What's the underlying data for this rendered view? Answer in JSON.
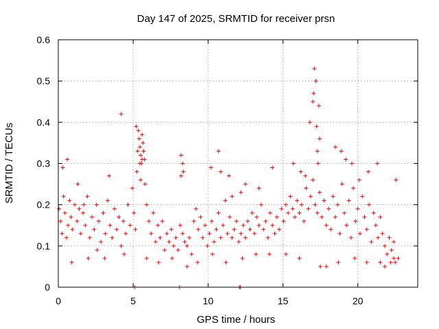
{
  "chart_data": {
    "type": "scatter",
    "title": "Day 147 of 2025, SRMTID for receiver prsn",
    "xlabel": "GPS time / hours",
    "ylabel": "SRMTID / TECUs",
    "xlim": [
      0,
      24
    ],
    "ylim": [
      0,
      0.6
    ],
    "xticks": [
      0,
      5,
      10,
      15,
      20
    ],
    "xtick_labels": [
      "0",
      "5",
      "10",
      "15",
      "20"
    ],
    "yticks": [
      0,
      0.1,
      0.2,
      0.3,
      0.4,
      0.5,
      0.6
    ],
    "ytick_labels": [
      "0",
      "0.1",
      "0.2",
      "0.3",
      "0.4",
      "0.5",
      "0.6"
    ],
    "grid": true,
    "marker": "+",
    "color": "#ff0000",
    "series": [
      {
        "name": "SRMTID",
        "x": [
          0.05,
          0.15,
          0.25,
          0.35,
          0.45,
          0.55,
          0.65,
          0.75,
          0.85,
          0.95,
          1.1,
          1.25,
          1.4,
          1.5,
          1.65,
          1.8,
          1.95,
          2.1,
          2.25,
          2.4,
          2.55,
          2.7,
          2.85,
          3.0,
          3.15,
          3.3,
          3.45,
          3.6,
          3.75,
          3.9,
          4.05,
          4.2,
          4.35,
          4.5,
          4.65,
          4.8,
          4.95,
          5.05,
          5.15,
          5.25,
          5.3,
          5.35,
          5.45,
          5.5,
          5.6,
          5.7,
          5.8,
          5.9,
          6.05,
          6.2,
          6.35,
          6.5,
          6.65,
          6.8,
          6.95,
          7.1,
          7.25,
          7.4,
          7.55,
          7.7,
          7.85,
          8.0,
          8.15,
          8.2,
          8.3,
          8.45,
          8.6,
          8.75,
          8.9,
          9.05,
          9.2,
          9.35,
          9.5,
          9.65,
          9.8,
          9.95,
          10.1,
          10.25,
          10.4,
          10.55,
          10.7,
          10.85,
          11.0,
          11.15,
          11.3,
          11.45,
          11.6,
          11.75,
          11.9,
          12.05,
          12.2,
          12.35,
          12.5,
          12.65,
          12.8,
          12.95,
          13.1,
          13.25,
          13.4,
          13.55,
          13.7,
          13.85,
          14.0,
          14.15,
          14.3,
          14.45,
          14.6,
          14.75,
          14.9,
          15.05,
          15.2,
          15.35,
          15.5,
          15.65,
          15.8,
          15.95,
          16.1,
          16.25,
          16.4,
          16.55,
          16.7,
          16.85,
          17.0,
          17.15,
          17.3,
          17.45,
          17.6,
          17.75,
          17.9,
          18.05,
          18.2,
          18.35,
          18.5,
          18.65,
          18.8,
          18.95,
          19.1,
          19.25,
          19.4,
          19.55,
          19.7,
          19.85,
          20.0,
          20.15,
          20.3,
          20.45,
          20.6,
          20.75,
          20.9,
          21.05,
          21.2,
          21.35,
          21.5,
          21.65,
          21.8,
          21.95,
          22.1,
          22.25,
          22.4,
          22.55,
          22.7,
          0.3,
          0.6,
          1.3,
          1.7,
          2.6,
          3.4,
          4.2,
          5.2,
          5.4,
          5.45,
          5.5,
          5.55,
          5.6,
          5.65,
          5.7,
          5.75,
          8.2,
          8.3,
          8.35,
          10.2,
          10.7,
          10.85,
          11.4,
          11.6,
          12.2,
          12.5,
          13.4,
          14.3,
          15.7,
          16.2,
          16.5,
          16.8,
          17.0,
          17.05,
          17.1,
          17.2,
          17.25,
          17.3,
          17.35,
          17.4,
          17.45,
          17.5,
          18.5,
          18.9,
          19.2,
          19.6,
          20.1,
          20.7,
          21.3,
          21.8,
          22.2,
          22.5,
          0.9,
          2.0,
          3.1,
          4.4,
          5.9,
          6.7,
          7.6,
          8.6,
          9.3,
          10.3,
          11.2,
          12.3,
          13.2,
          14.1,
          15.2,
          16.1,
          17.9,
          18.7,
          19.8,
          20.6,
          21.5,
          22.4,
          5.1,
          8.1,
          12.1,
          12.15
        ],
        "y": [
          0.19,
          0.16,
          0.13,
          0.22,
          0.18,
          0.12,
          0.15,
          0.21,
          0.17,
          0.14,
          0.2,
          0.16,
          0.19,
          0.13,
          0.18,
          0.15,
          0.22,
          0.12,
          0.17,
          0.14,
          0.2,
          0.16,
          0.11,
          0.18,
          0.13,
          0.21,
          0.15,
          0.12,
          0.19,
          0.14,
          0.17,
          0.1,
          0.16,
          0.13,
          0.2,
          0.15,
          0.24,
          0.18,
          0.14,
          0.28,
          0.33,
          0.38,
          0.3,
          0.26,
          0.31,
          0.33,
          0.25,
          0.2,
          0.16,
          0.13,
          0.18,
          0.11,
          0.15,
          0.12,
          0.16,
          0.09,
          0.13,
          0.11,
          0.14,
          0.1,
          0.12,
          0.09,
          0.15,
          0.27,
          0.13,
          0.11,
          0.1,
          0.12,
          0.08,
          0.16,
          0.19,
          0.14,
          0.17,
          0.12,
          0.15,
          0.1,
          0.13,
          0.16,
          0.11,
          0.14,
          0.18,
          0.12,
          0.15,
          0.21,
          0.13,
          0.17,
          0.12,
          0.14,
          0.16,
          0.11,
          0.13,
          0.15,
          0.12,
          0.16,
          0.14,
          0.18,
          0.13,
          0.17,
          0.15,
          0.2,
          0.14,
          0.16,
          0.12,
          0.18,
          0.15,
          0.13,
          0.17,
          0.14,
          0.19,
          0.16,
          0.2,
          0.18,
          0.22,
          0.19,
          0.17,
          0.21,
          0.18,
          0.2,
          0.16,
          0.24,
          0.19,
          0.22,
          0.26,
          0.2,
          0.18,
          0.23,
          0.17,
          0.21,
          0.15,
          0.19,
          0.14,
          0.22,
          0.17,
          0.2,
          0.13,
          0.25,
          0.18,
          0.15,
          0.21,
          0.12,
          0.24,
          0.16,
          0.19,
          0.13,
          0.22,
          0.17,
          0.14,
          0.2,
          0.11,
          0.18,
          0.15,
          0.12,
          0.17,
          0.13,
          0.1,
          0.08,
          0.12,
          0.09,
          0.11,
          0.26,
          0.07,
          0.29,
          0.31,
          0.25,
          0.2,
          0.09,
          0.27,
          0.42,
          0.39,
          0.36,
          0.34,
          0.32,
          0.3,
          0.37,
          0.35,
          0.33,
          0.31,
          0.32,
          0.3,
          0.28,
          0.29,
          0.33,
          0.28,
          0.27,
          0.22,
          0.23,
          0.25,
          0.24,
          0.29,
          0.3,
          0.28,
          0.27,
          0.4,
          0.45,
          0.47,
          0.53,
          0.5,
          0.39,
          0.33,
          0.3,
          0.44,
          0.36,
          0.05,
          0.34,
          0.33,
          0.31,
          0.3,
          0.26,
          0.28,
          0.3,
          0.05,
          0.06,
          0.06,
          0.06,
          0.07,
          0.07,
          0.08,
          0.07,
          0.06,
          0.07,
          0.05,
          0.06,
          0.08,
          0.06,
          0.07,
          0.08,
          0.08,
          0.08,
          0.07,
          0.05,
          0.06,
          0.07,
          0.06,
          0.06,
          0.07,
          0.0,
          0.0,
          0.0,
          0.0
        ]
      }
    ]
  }
}
